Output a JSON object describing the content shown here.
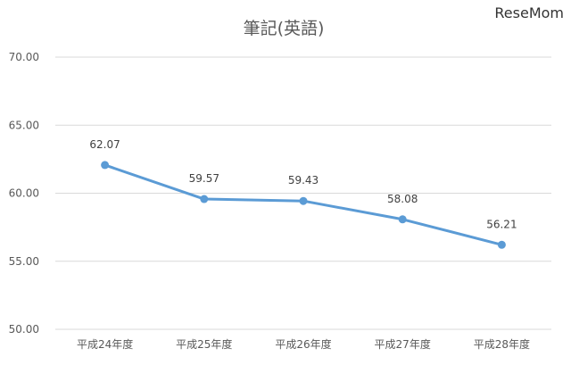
{
  "watermark": "ReseMom",
  "chart_data": {
    "type": "line",
    "title": "筆記(英語)",
    "xlabel": "",
    "ylabel": "",
    "categories": [
      "平成24年度",
      "平成25年度",
      "平成26年度",
      "平成27年度",
      "平成28年度"
    ],
    "series": [
      {
        "values": [
          62.07,
          59.57,
          59.43,
          58.08,
          56.21
        ]
      }
    ],
    "data_labels": [
      "62.07",
      "59.57",
      "59.43",
      "58.08",
      "56.21"
    ],
    "ylim": [
      50,
      70
    ],
    "y_ticks": [
      "50.00",
      "55.00",
      "60.00",
      "65.00",
      "70.00"
    ],
    "grid": true,
    "legend": "none",
    "colors": {
      "line": "#5b9bd5",
      "grid": "#d9d9d9",
      "text": "#595959"
    }
  }
}
